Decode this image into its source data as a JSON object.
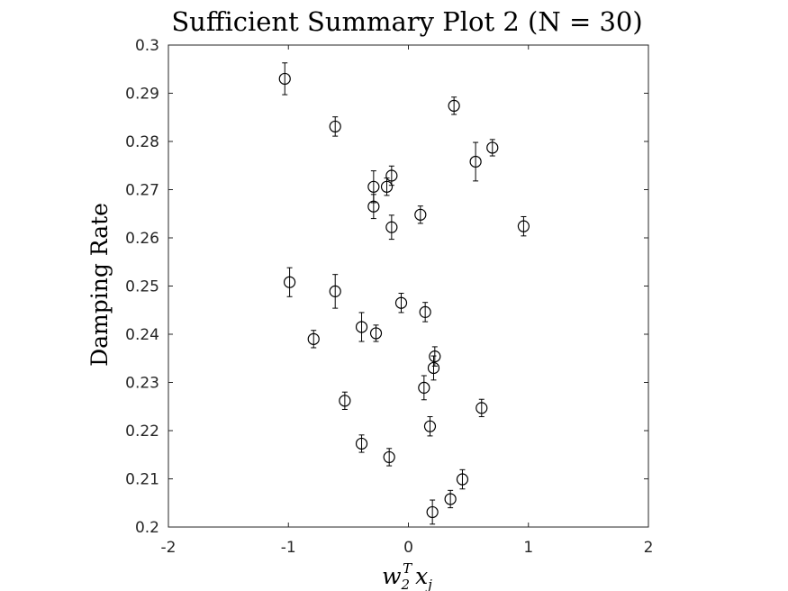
{
  "chart_data": {
    "type": "scatter",
    "title": "Sufficient Summary Plot 2 (N = 30)",
    "xlabel_base": "w",
    "xlabel_sub": "2",
    "xlabel_sup": "T",
    "xlabel_var": "x",
    "xlabel_var_sub": "j",
    "ylabel": "Damping Rate",
    "xlim": [
      -2,
      2
    ],
    "ylim": [
      0.2,
      0.3
    ],
    "xticks": [
      -2,
      -1,
      0,
      1,
      2
    ],
    "xtick_labels": [
      "-2",
      "-1",
      "0",
      "1",
      "2"
    ],
    "yticks": [
      0.2,
      0.21,
      0.22,
      0.23,
      0.24,
      0.25,
      0.26,
      0.27,
      0.28,
      0.29,
      0.3
    ],
    "ytick_labels": [
      "0.2",
      "0.21",
      "0.22",
      "0.23",
      "0.24",
      "0.25",
      "0.26",
      "0.27",
      "0.28",
      "0.29",
      "0.3"
    ],
    "grid": true,
    "marker": "open-circle",
    "colors": {
      "marker": "#000000",
      "grid": "#d9d9d9",
      "axes": "#262626"
    },
    "points": [
      {
        "x": -1.03,
        "y": 0.293,
        "err": 0.0033
      },
      {
        "x": -0.61,
        "y": 0.2831,
        "err": 0.002
      },
      {
        "x": 0.38,
        "y": 0.2874,
        "err": 0.0018
      },
      {
        "x": 0.56,
        "y": 0.2758,
        "err": 0.004
      },
      {
        "x": 0.7,
        "y": 0.2787,
        "err": 0.0017
      },
      {
        "x": -0.14,
        "y": 0.2729,
        "err": 0.002
      },
      {
        "x": -0.29,
        "y": 0.2706,
        "err": 0.0033
      },
      {
        "x": -0.18,
        "y": 0.2706,
        "err": 0.0018
      },
      {
        "x": -0.29,
        "y": 0.2665,
        "err": 0.0025
      },
      {
        "x": 0.1,
        "y": 0.2648,
        "err": 0.0018
      },
      {
        "x": -0.14,
        "y": 0.2622,
        "err": 0.0025
      },
      {
        "x": 0.96,
        "y": 0.2624,
        "err": 0.002
      },
      {
        "x": -0.99,
        "y": 0.2508,
        "err": 0.003
      },
      {
        "x": -0.61,
        "y": 0.2489,
        "err": 0.0035
      },
      {
        "x": -0.06,
        "y": 0.2465,
        "err": 0.002
      },
      {
        "x": 0.14,
        "y": 0.2446,
        "err": 0.002
      },
      {
        "x": -0.39,
        "y": 0.2415,
        "err": 0.003
      },
      {
        "x": -0.27,
        "y": 0.2402,
        "err": 0.0017
      },
      {
        "x": -0.79,
        "y": 0.239,
        "err": 0.0018
      },
      {
        "x": 0.22,
        "y": 0.2354,
        "err": 0.002
      },
      {
        "x": 0.21,
        "y": 0.233,
        "err": 0.0025
      },
      {
        "x": 0.13,
        "y": 0.2289,
        "err": 0.0025
      },
      {
        "x": -0.53,
        "y": 0.2262,
        "err": 0.0018
      },
      {
        "x": 0.61,
        "y": 0.2247,
        "err": 0.0018
      },
      {
        "x": 0.18,
        "y": 0.2209,
        "err": 0.002
      },
      {
        "x": -0.39,
        "y": 0.2173,
        "err": 0.0018
      },
      {
        "x": -0.16,
        "y": 0.2145,
        "err": 0.0018
      },
      {
        "x": 0.45,
        "y": 0.2099,
        "err": 0.002
      },
      {
        "x": 0.35,
        "y": 0.2058,
        "err": 0.0018
      },
      {
        "x": 0.2,
        "y": 0.2031,
        "err": 0.0025
      }
    ]
  }
}
